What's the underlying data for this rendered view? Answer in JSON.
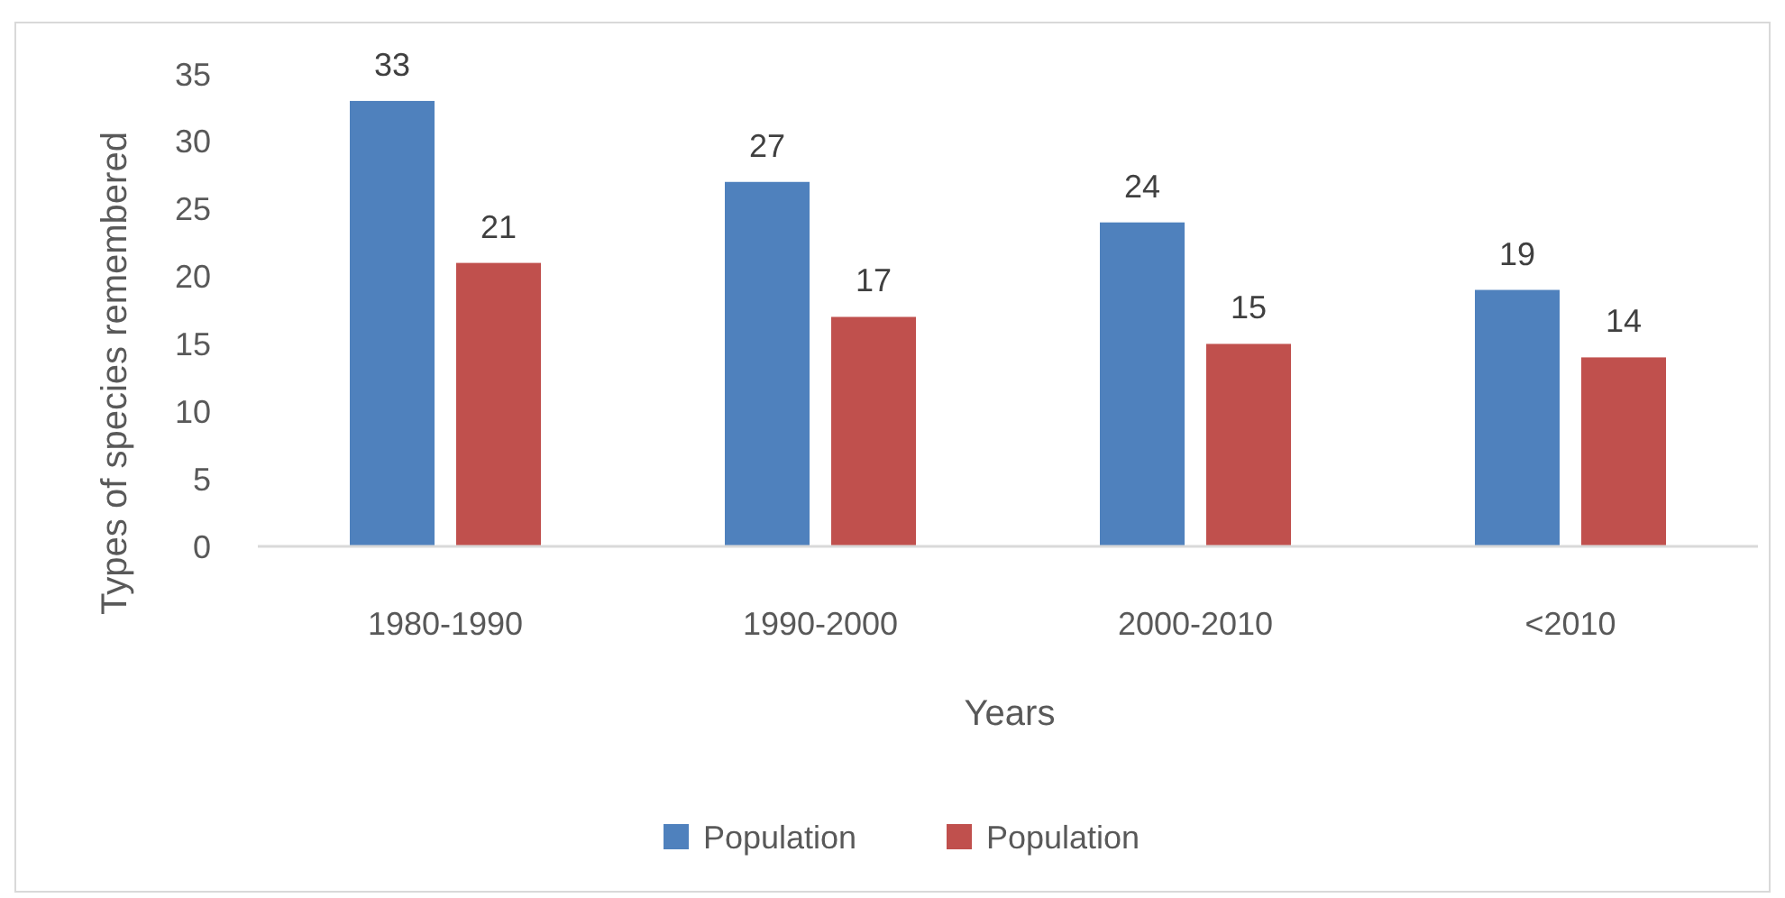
{
  "chart_data": {
    "type": "bar",
    "xlabel": "Years",
    "ylabel": "Types of species remembered",
    "categories": [
      "1980-1990",
      "1990-2000",
      "2000-2010",
      "<2010"
    ],
    "series": [
      {
        "name": "Population",
        "color": "#4f81bd",
        "values": [
          33,
          27,
          24,
          19
        ]
      },
      {
        "name": "Population",
        "color": "#c0504d",
        "values": [
          21,
          17,
          15,
          14
        ]
      }
    ],
    "ylim": [
      0,
      35
    ],
    "yticks": [
      0,
      5,
      10,
      15,
      20,
      25,
      30,
      35
    ],
    "grid": false,
    "legend": "bottom",
    "data_labels": true
  }
}
